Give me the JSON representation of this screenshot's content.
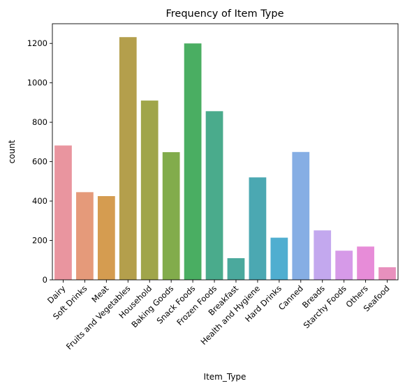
{
  "chart_data": {
    "type": "bar",
    "title": "Frequency of Item Type",
    "xlabel": "Item_Type",
    "ylabel": "count",
    "ylim": [
      0,
      1300
    ],
    "yticks": [
      0,
      200,
      400,
      600,
      800,
      1000,
      1200
    ],
    "grid": false,
    "categories": [
      "Dairy",
      "Soft Drinks",
      "Meat",
      "Fruits and Vegetables",
      "Household",
      "Baking Goods",
      "Snack Foods",
      "Frozen Foods",
      "Breakfast",
      "Health and Hygiene",
      "Hard Drinks",
      "Canned",
      "Breads",
      "Starchy Foods",
      "Others",
      "Seafood"
    ],
    "values": [
      682,
      445,
      425,
      1232,
      910,
      648,
      1200,
      856,
      110,
      520,
      214,
      649,
      251,
      148,
      169,
      64
    ],
    "colors": [
      "#e9959f",
      "#e59a7a",
      "#d59c50",
      "#b49f4c",
      "#a0a54a",
      "#82ac4c",
      "#4aae62",
      "#4aab8c",
      "#4ba99d",
      "#4ba8b2",
      "#50aed0",
      "#86aee4",
      "#c3a8ee",
      "#d69ae8",
      "#e78cd8",
      "#e890bd"
    ]
  }
}
